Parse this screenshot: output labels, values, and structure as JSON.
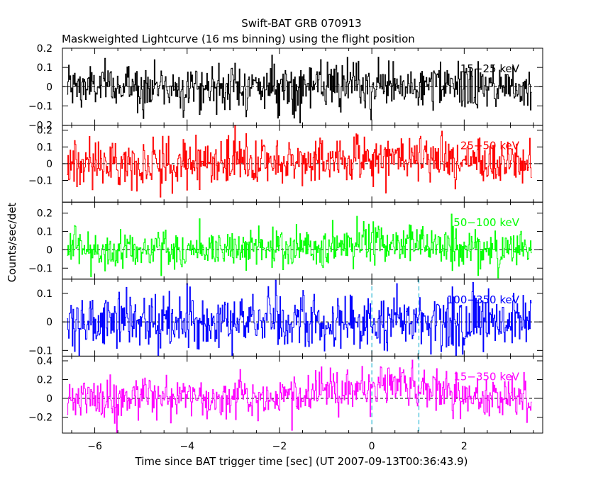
{
  "chart_data": {
    "type": "line",
    "title": "Swift-BAT GRB 070913",
    "subtitle": "Maskweighted Lightcurve (16 ms binning) using the flight position",
    "xlabel": "Time since BAT trigger time [sec] (UT 2007-09-13T00:36:43.9)",
    "ylabel": "Counts/sec/det",
    "xlim": [
      -6.7,
      3.7
    ],
    "xticks": [
      -6,
      -4,
      -2,
      0,
      2
    ],
    "x_tick_labels": [
      "−6",
      "−4",
      "−2",
      "0",
      "2"
    ],
    "x_start": -6.6,
    "x_end": 3.45,
    "bin_width": 0.016,
    "markers": [
      0,
      1.02
    ],
    "panels": [
      {
        "name": "15−25 keV",
        "color": "#000000",
        "ylim": [
          -0.2,
          0.2
        ],
        "yticks": [
          -0.2,
          -0.1,
          0,
          0.1,
          0.2
        ],
        "ytick_labels": [
          "−0.2",
          "−0.1",
          "0",
          "0.1",
          "0.2"
        ],
        "noise_level": 0.06,
        "trend": [
          [
            -6.6,
            0.0
          ],
          [
            3.45,
            0.0
          ]
        ]
      },
      {
        "name": "25−50 keV",
        "color": "#ff0000",
        "ylim": [
          -0.23,
          0.23
        ],
        "yticks": [
          -0.1,
          0,
          0.1,
          0.2
        ],
        "ytick_labels": [
          "−0.1",
          "0",
          "0.1",
          "0.2"
        ],
        "noise_level": 0.07,
        "trend": [
          [
            -6.6,
            0.0
          ],
          [
            -1.5,
            0.01
          ],
          [
            0.0,
            0.04
          ],
          [
            1.0,
            0.03
          ],
          [
            3.45,
            0.0
          ]
        ]
      },
      {
        "name": "50−100 keV",
        "color": "#00ff00",
        "ylim": [
          -0.16,
          0.26
        ],
        "yticks": [
          -0.1,
          0,
          0.1,
          0.2
        ],
        "ytick_labels": [
          "−0.1",
          "0",
          "0.1",
          "0.2"
        ],
        "noise_level": 0.055,
        "trend": [
          [
            -6.6,
            0.0
          ],
          [
            -1.0,
            0.01
          ],
          [
            0.5,
            0.05
          ],
          [
            1.5,
            0.02
          ],
          [
            3.45,
            0.0
          ]
        ]
      },
      {
        "name": "100−350 keV",
        "color": "#0000ff",
        "ylim": [
          -0.12,
          0.15
        ],
        "yticks": [
          -0.1,
          0,
          0.1
        ],
        "ytick_labels": [
          "−0.1",
          "0",
          "0.1"
        ],
        "noise_level": 0.05,
        "trend": [
          [
            -6.6,
            0.0
          ],
          [
            3.45,
            0.0
          ]
        ]
      },
      {
        "name": "15−350 keV",
        "color": "#ff00ff",
        "ylim": [
          -0.37,
          0.45
        ],
        "yticks": [
          -0.2,
          0,
          0.2,
          0.4
        ],
        "ytick_labels": [
          "−0.2",
          "0",
          "0.2",
          "0.4"
        ],
        "noise_level": 0.11,
        "trend": [
          [
            -6.6,
            0.0
          ],
          [
            -2.0,
            0.02
          ],
          [
            -1.0,
            0.07
          ],
          [
            0.3,
            0.14
          ],
          [
            1.0,
            0.08
          ],
          [
            3.45,
            0.0
          ]
        ]
      }
    ]
  }
}
